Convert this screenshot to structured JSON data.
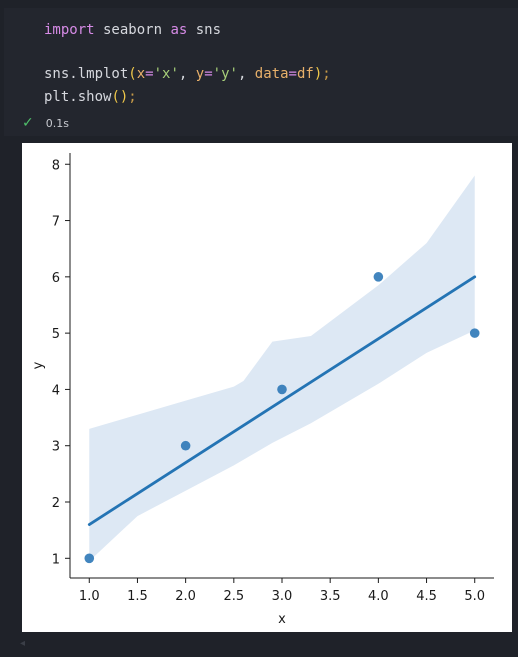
{
  "code": {
    "line1": {
      "kw1": "import",
      "mid": " seaborn ",
      "kw2": "as",
      "end": " sns"
    },
    "line2": {
      "pre": "sns.lmplot",
      "open": "(",
      "a1": "x",
      "eq1": "=",
      "s1": "'x'",
      "c1": ", ",
      "a2": "y",
      "eq2": "=",
      "s2": "'y'",
      "c2": ", ",
      "a3": "data",
      "eq3": "=",
      "v3": "df",
      "close": ")",
      "semi": ";"
    },
    "line3": {
      "pre": "plt.show",
      "parens": "()",
      "semi": ";"
    }
  },
  "status": {
    "check_icon": "check-icon",
    "time": "0.1s"
  },
  "chart_data": {
    "type": "scatter",
    "x": [
      1.0,
      2.0,
      3.0,
      4.0,
      5.0
    ],
    "y": [
      1,
      3,
      4,
      6,
      5
    ],
    "regression_line": {
      "x": [
        1.0,
        5.0
      ],
      "y": [
        1.6,
        6.0
      ]
    },
    "confidence_band": {
      "x": [
        1.0,
        1.5,
        2.0,
        2.5,
        2.6,
        2.9,
        3.3,
        4.0,
        4.5,
        5.0
      ],
      "upper": [
        3.3,
        3.55,
        3.8,
        4.05,
        4.15,
        4.85,
        4.95,
        5.85,
        6.6,
        7.8
      ],
      "lower": [
        0.95,
        1.75,
        2.2,
        2.65,
        2.75,
        3.05,
        3.4,
        4.1,
        4.65,
        5.05
      ]
    },
    "xlabel": "x",
    "ylabel": "y",
    "xticks": [
      "1.0",
      "1.5",
      "2.0",
      "2.5",
      "3.0",
      "3.5",
      "4.0",
      "4.5",
      "5.0"
    ],
    "yticks": [
      "1",
      "2",
      "3",
      "4",
      "5",
      "6",
      "7",
      "8"
    ],
    "xlim": [
      0.8,
      5.2
    ],
    "ylim": [
      0.65,
      8.2
    ],
    "colors": {
      "points": "#2e78b7",
      "line": "#2474b4",
      "band": "#dde8f4"
    }
  }
}
